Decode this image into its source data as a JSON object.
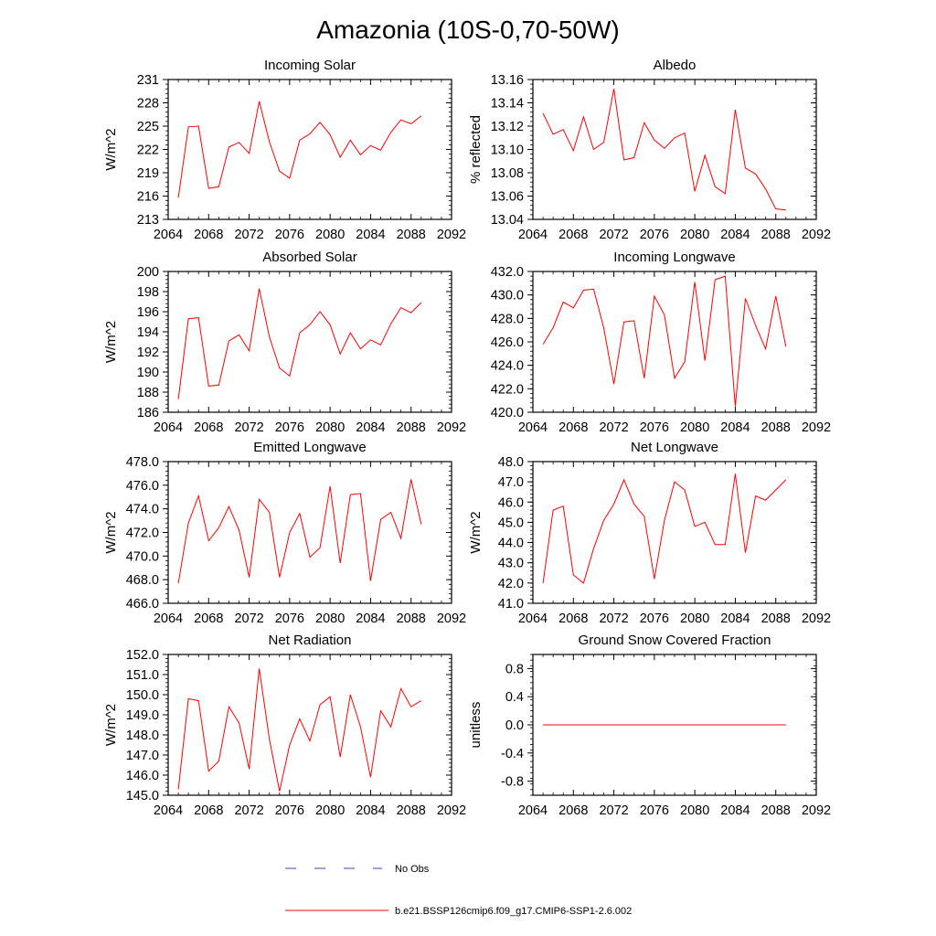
{
  "title": "Amazonia (10S-0,70-50W)",
  "colors": {
    "model": "#ff0000",
    "obs": "#4040c0",
    "axis": "#000000"
  },
  "legend": {
    "obs_label": "No Obs",
    "model_label": "b.e21.BSSP126cmip6.f09_g17.CMIP6-SSP1-2.6.002"
  },
  "chart_data": [
    {
      "type": "line",
      "title": "Incoming Solar",
      "ylabel": "W/m^2",
      "xlim": [
        2064,
        2092
      ],
      "ylim": [
        213,
        231
      ],
      "xticks": [
        2064,
        2068,
        2072,
        2076,
        2080,
        2084,
        2088,
        2092
      ],
      "yticks": [
        213,
        216,
        219,
        222,
        225,
        228,
        231
      ],
      "ytick_labels": [
        "213",
        "216",
        "219",
        "222",
        "225",
        "228",
        "231"
      ],
      "series": [
        {
          "name": "b.e21.BSSP126cmip6.f09_g17.CMIP6-SSP1-2.6.002",
          "x": [
            2065,
            2066,
            2067,
            2068,
            2069,
            2070,
            2071,
            2072,
            2073,
            2074,
            2075,
            2076,
            2077,
            2078,
            2079,
            2080,
            2081,
            2082,
            2083,
            2084,
            2085,
            2086,
            2087,
            2088,
            2089
          ],
          "y": [
            215.8,
            224.9,
            225.0,
            217.0,
            217.2,
            222.3,
            222.9,
            221.5,
            228.2,
            223.0,
            219.2,
            218.3,
            223.2,
            224.0,
            225.5,
            223.9,
            221.0,
            223.2,
            221.3,
            222.5,
            221.9,
            224.2,
            225.8,
            225.3,
            226.3
          ]
        }
      ]
    },
    {
      "type": "line",
      "title": "Albedo",
      "ylabel": "% reflected",
      "xlim": [
        2064,
        2092
      ],
      "ylim": [
        13.04,
        13.16
      ],
      "xticks": [
        2064,
        2068,
        2072,
        2076,
        2080,
        2084,
        2088,
        2092
      ],
      "yticks": [
        13.04,
        13.06,
        13.08,
        13.1,
        13.12,
        13.14,
        13.16
      ],
      "ytick_labels": [
        "13.04",
        "13.06",
        "13.08",
        "13.10",
        "13.12",
        "13.14",
        "13.16"
      ],
      "series": [
        {
          "name": "b.e21.BSSP126cmip6.f09_g17.CMIP6-SSP1-2.6.002",
          "x": [
            2065,
            2066,
            2067,
            2068,
            2069,
            2070,
            2071,
            2072,
            2073,
            2074,
            2075,
            2076,
            2077,
            2078,
            2079,
            2080,
            2081,
            2082,
            2083,
            2084,
            2085,
            2086,
            2087,
            2088,
            2089
          ],
          "y": [
            13.131,
            13.113,
            13.117,
            13.099,
            13.128,
            13.1,
            13.106,
            13.152,
            13.091,
            13.093,
            13.123,
            13.108,
            13.101,
            13.11,
            13.114,
            13.064,
            13.095,
            13.068,
            13.062,
            13.134,
            13.084,
            13.079,
            13.066,
            13.049,
            13.048
          ]
        }
      ]
    },
    {
      "type": "line",
      "title": "Absorbed Solar",
      "ylabel": "W/m^2",
      "xlim": [
        2064,
        2092
      ],
      "ylim": [
        186,
        200
      ],
      "xticks": [
        2064,
        2068,
        2072,
        2076,
        2080,
        2084,
        2088,
        2092
      ],
      "yticks": [
        186,
        188,
        190,
        192,
        194,
        196,
        198,
        200
      ],
      "ytick_labels": [
        "186",
        "188",
        "190",
        "192",
        "194",
        "196",
        "198",
        "200"
      ],
      "series": [
        {
          "name": "b.e21.BSSP126cmip6.f09_g17.CMIP6-SSP1-2.6.002",
          "x": [
            2065,
            2066,
            2067,
            2068,
            2069,
            2070,
            2071,
            2072,
            2073,
            2074,
            2075,
            2076,
            2077,
            2078,
            2079,
            2080,
            2081,
            2082,
            2083,
            2084,
            2085,
            2086,
            2087,
            2088,
            2089
          ],
          "y": [
            187.3,
            195.3,
            195.4,
            188.6,
            188.7,
            193.1,
            193.7,
            192.1,
            198.3,
            193.5,
            190.4,
            189.6,
            193.9,
            194.7,
            196.0,
            194.7,
            191.8,
            193.9,
            192.3,
            193.2,
            192.7,
            194.8,
            196.4,
            195.9,
            196.9
          ]
        }
      ]
    },
    {
      "type": "line",
      "title": "Incoming Longwave",
      "ylabel": "",
      "xlim": [
        2064,
        2092
      ],
      "ylim": [
        420,
        432
      ],
      "xticks": [
        2064,
        2068,
        2072,
        2076,
        2080,
        2084,
        2088,
        2092
      ],
      "yticks": [
        420,
        422,
        424,
        426,
        428,
        430,
        432
      ],
      "ytick_labels": [
        "420.0",
        "422.0",
        "424.0",
        "426.0",
        "428.0",
        "430.0",
        "432.0"
      ],
      "series": [
        {
          "name": "b.e21.BSSP126cmip6.f09_g17.CMIP6-SSP1-2.6.002",
          "x": [
            2065,
            2066,
            2067,
            2068,
            2069,
            2070,
            2071,
            2072,
            2073,
            2074,
            2075,
            2076,
            2077,
            2078,
            2079,
            2080,
            2081,
            2082,
            2083,
            2084,
            2085,
            2086,
            2087,
            2088,
            2089
          ],
          "y": [
            425.8,
            427.2,
            429.4,
            428.9,
            430.4,
            430.5,
            427.2,
            422.4,
            427.7,
            427.8,
            422.9,
            429.9,
            428.3,
            422.9,
            424.3,
            431.1,
            424.4,
            431.3,
            431.6,
            420.5,
            429.7,
            427.4,
            425.4,
            429.9,
            425.6
          ]
        }
      ]
    },
    {
      "type": "line",
      "title": "Emitted Longwave",
      "ylabel": "W/m^2",
      "xlim": [
        2064,
        2092
      ],
      "ylim": [
        466,
        478
      ],
      "xticks": [
        2064,
        2068,
        2072,
        2076,
        2080,
        2084,
        2088,
        2092
      ],
      "yticks": [
        466,
        468,
        470,
        472,
        474,
        476,
        478
      ],
      "ytick_labels": [
        "466.0",
        "468.0",
        "470.0",
        "472.0",
        "474.0",
        "476.0",
        "478.0"
      ],
      "series": [
        {
          "name": "b.e21.BSSP126cmip6.f09_g17.CMIP6-SSP1-2.6.002",
          "x": [
            2065,
            2066,
            2067,
            2068,
            2069,
            2070,
            2071,
            2072,
            2073,
            2074,
            2075,
            2076,
            2077,
            2078,
            2079,
            2080,
            2081,
            2082,
            2083,
            2084,
            2085,
            2086,
            2087,
            2088,
            2089
          ],
          "y": [
            467.7,
            472.8,
            475.1,
            471.3,
            472.4,
            474.2,
            472.2,
            468.2,
            474.8,
            473.7,
            468.2,
            472.0,
            473.6,
            469.9,
            470.7,
            475.9,
            469.4,
            475.2,
            475.3,
            467.9,
            473.1,
            473.7,
            471.5,
            476.5,
            472.7
          ]
        }
      ]
    },
    {
      "type": "line",
      "title": "Net Longwave",
      "ylabel": "W/m^2",
      "xlim": [
        2064,
        2092
      ],
      "ylim": [
        41,
        48
      ],
      "xticks": [
        2064,
        2068,
        2072,
        2076,
        2080,
        2084,
        2088,
        2092
      ],
      "yticks": [
        41,
        42,
        43,
        44,
        45,
        46,
        47,
        48
      ],
      "ytick_labels": [
        "41.0",
        "42.0",
        "43.0",
        "44.0",
        "45.0",
        "46.0",
        "47.0",
        "48.0"
      ],
      "series": [
        {
          "name": "b.e21.BSSP126cmip6.f09_g17.CMIP6-SSP1-2.6.002",
          "x": [
            2065,
            2066,
            2067,
            2068,
            2069,
            2070,
            2071,
            2072,
            2073,
            2074,
            2075,
            2076,
            2077,
            2078,
            2079,
            2080,
            2081,
            2082,
            2083,
            2084,
            2085,
            2086,
            2087,
            2088,
            2089
          ],
          "y": [
            42.0,
            45.6,
            45.8,
            42.4,
            42.0,
            43.7,
            45.1,
            45.9,
            47.1,
            45.9,
            45.3,
            42.2,
            45.1,
            47.0,
            46.6,
            44.8,
            45.0,
            43.9,
            43.9,
            47.4,
            43.5,
            46.3,
            46.1,
            46.6,
            47.1
          ]
        }
      ]
    },
    {
      "type": "line",
      "title": "Net Radiation",
      "ylabel": "W/m^2",
      "xlim": [
        2064,
        2092
      ],
      "ylim": [
        145,
        152
      ],
      "xticks": [
        2064,
        2068,
        2072,
        2076,
        2080,
        2084,
        2088,
        2092
      ],
      "yticks": [
        145,
        146,
        147,
        148,
        149,
        150,
        151,
        152
      ],
      "ytick_labels": [
        "145.0",
        "146.0",
        "147.0",
        "148.0",
        "149.0",
        "150.0",
        "151.0",
        "152.0"
      ],
      "series": [
        {
          "name": "b.e21.BSSP126cmip6.f09_g17.CMIP6-SSP1-2.6.002",
          "x": [
            2065,
            2066,
            2067,
            2068,
            2069,
            2070,
            2071,
            2072,
            2073,
            2074,
            2075,
            2076,
            2077,
            2078,
            2079,
            2080,
            2081,
            2082,
            2083,
            2084,
            2085,
            2086,
            2087,
            2088,
            2089
          ],
          "y": [
            145.3,
            149.8,
            149.7,
            146.2,
            146.7,
            149.4,
            148.6,
            146.3,
            151.3,
            147.8,
            145.2,
            147.5,
            148.8,
            147.7,
            149.5,
            149.9,
            146.9,
            150.0,
            148.4,
            145.9,
            149.2,
            148.4,
            150.3,
            149.4,
            149.7
          ]
        }
      ]
    },
    {
      "type": "line",
      "title": "Ground Snow Covered Fraction",
      "ylabel": "unitless",
      "xlim": [
        2064,
        2092
      ],
      "ylim": [
        -1.0,
        1.0
      ],
      "xticks": [
        2064,
        2068,
        2072,
        2076,
        2080,
        2084,
        2088,
        2092
      ],
      "yticks": [
        -0.8,
        -0.4,
        0.0,
        0.4,
        0.8
      ],
      "ytick_labels": [
        "-0.8",
        "-0.4",
        "0.0",
        "0.4",
        "0.8"
      ],
      "series": [
        {
          "name": "b.e21.BSSP126cmip6.f09_g17.CMIP6-SSP1-2.6.002",
          "x": [
            2065,
            2066,
            2067,
            2068,
            2069,
            2070,
            2071,
            2072,
            2073,
            2074,
            2075,
            2076,
            2077,
            2078,
            2079,
            2080,
            2081,
            2082,
            2083,
            2084,
            2085,
            2086,
            2087,
            2088,
            2089
          ],
          "y": [
            0,
            0,
            0,
            0,
            0,
            0,
            0,
            0,
            0,
            0,
            0,
            0,
            0,
            0,
            0,
            0,
            0,
            0,
            0,
            0,
            0,
            0,
            0,
            0,
            0
          ]
        }
      ]
    }
  ]
}
